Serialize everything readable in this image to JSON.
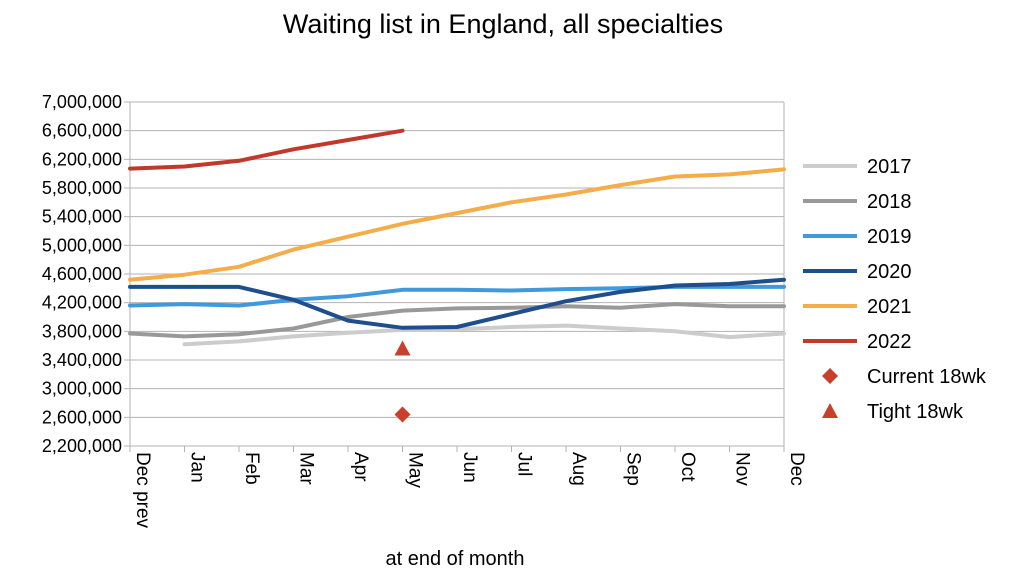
{
  "chart_data": {
    "type": "line",
    "title": "Waiting list in England, all specialties",
    "xlabel": "at end of month",
    "ylabel": "",
    "categories": [
      "Dec prev",
      "Jan",
      "Feb",
      "Mar",
      "Apr",
      "May",
      "Jun",
      "Jul",
      "Aug",
      "Sep",
      "Oct",
      "Nov",
      "Dec"
    ],
    "ylim": [
      2200000,
      7000000
    ],
    "ytick_step": 400000,
    "grid": true,
    "legend_position": "right",
    "series": [
      {
        "name": "2017",
        "color": "#cccccc",
        "values": [
          null,
          3620000,
          3660000,
          3730000,
          3780000,
          3820000,
          3830000,
          3860000,
          3880000,
          3840000,
          3800000,
          3720000,
          3770000
        ]
      },
      {
        "name": "2018",
        "color": "#999999",
        "values": [
          3770000,
          3730000,
          3760000,
          3840000,
          4000000,
          4090000,
          4120000,
          4130000,
          4150000,
          4130000,
          4180000,
          4150000,
          4150000
        ]
      },
      {
        "name": "2019",
        "color": "#3f99dd",
        "values": [
          4160000,
          4180000,
          4160000,
          4240000,
          4290000,
          4380000,
          4380000,
          4370000,
          4390000,
          4400000,
          4420000,
          4420000,
          4420000
        ]
      },
      {
        "name": "2020",
        "color": "#1f4e8c",
        "values": [
          4420000,
          4420000,
          4420000,
          4240000,
          3950000,
          3850000,
          3860000,
          4040000,
          4220000,
          4350000,
          4440000,
          4460000,
          4520000
        ]
      },
      {
        "name": "2021",
        "color": "#f5ac4a",
        "values": [
          4520000,
          4590000,
          4700000,
          4940000,
          5120000,
          5300000,
          5450000,
          5600000,
          5710000,
          5840000,
          5960000,
          5990000,
          6060000
        ]
      },
      {
        "name": "2022",
        "color": "#c0392b",
        "values": [
          6070000,
          6100000,
          6180000,
          6340000,
          6470000,
          6600000,
          null,
          null,
          null,
          null,
          null,
          null,
          null
        ]
      }
    ],
    "markers": [
      {
        "name": "Current 18wk",
        "shape": "diamond",
        "color": "#c8402c",
        "category": "May",
        "value": 2640000
      },
      {
        "name": "Tight 18wk",
        "shape": "triangle",
        "color": "#c8402c",
        "category": "May",
        "value": 3560000
      }
    ]
  }
}
